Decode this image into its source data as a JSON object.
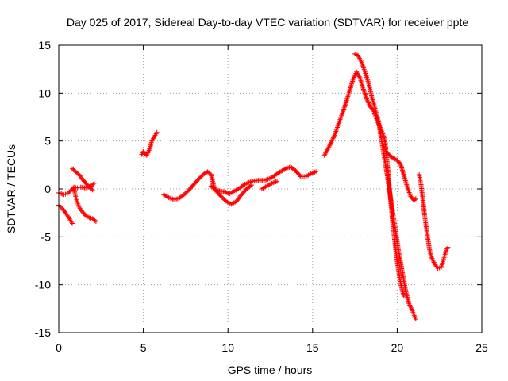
{
  "chart_data": {
    "type": "scatter",
    "title": "Day 025 of 2017, Sidereal Day-to-day VTEC variation (SDTVAR) for receiver ppte",
    "xlabel": "GPS time / hours",
    "ylabel": "SDTVAR / TECUs",
    "xlim": [
      0,
      25
    ],
    "ylim": [
      -15,
      15
    ],
    "xticks": [
      "0",
      "5",
      "10",
      "15",
      "20",
      "25"
    ],
    "yticks": [
      "15",
      "10",
      "5",
      "0",
      "-5",
      "-10",
      "-15"
    ],
    "grid": true,
    "marker": "plus",
    "color": "#ff0000",
    "series": [
      {
        "points": [
          [
            0.0,
            -0.4
          ],
          [
            0.3,
            -0.6
          ],
          [
            0.5,
            -0.5
          ],
          [
            0.7,
            -0.2
          ],
          [
            0.9,
            0.2
          ],
          [
            1.1,
            0.1
          ],
          [
            1.3,
            0.2
          ],
          [
            1.6,
            0.1
          ],
          [
            1.9,
            0.3
          ],
          [
            2.1,
            0.6
          ]
        ]
      },
      {
        "points": [
          [
            0.0,
            -1.7
          ],
          [
            0.2,
            -2.0
          ],
          [
            0.4,
            -2.5
          ],
          [
            0.6,
            -3.0
          ],
          [
            0.8,
            -3.6
          ]
        ]
      },
      {
        "points": [
          [
            0.8,
            2.1
          ],
          [
            1.0,
            1.8
          ],
          [
            1.2,
            1.5
          ],
          [
            1.4,
            1.0
          ],
          [
            1.6,
            0.6
          ],
          [
            1.8,
            0.2
          ],
          [
            2.0,
            -0.1
          ]
        ]
      },
      {
        "points": [
          [
            0.9,
            0.0
          ],
          [
            1.0,
            -0.8
          ],
          [
            1.1,
            -1.4
          ],
          [
            1.2,
            -1.9
          ],
          [
            1.4,
            -2.4
          ],
          [
            1.6,
            -2.8
          ],
          [
            1.8,
            -3.0
          ],
          [
            2.0,
            -3.1
          ],
          [
            2.2,
            -3.4
          ]
        ]
      },
      {
        "points": [
          [
            4.9,
            3.6
          ],
          [
            5.0,
            3.9
          ],
          [
            5.2,
            3.5
          ],
          [
            5.4,
            4.3
          ],
          [
            5.5,
            5.0
          ],
          [
            5.7,
            5.6
          ],
          [
            5.8,
            5.9
          ]
        ]
      },
      {
        "points": [
          [
            6.2,
            -0.6
          ],
          [
            6.5,
            -0.9
          ],
          [
            6.8,
            -1.1
          ],
          [
            7.1,
            -1.0
          ],
          [
            7.4,
            -0.6
          ],
          [
            7.7,
            -0.1
          ],
          [
            8.0,
            0.5
          ],
          [
            8.3,
            1.1
          ],
          [
            8.6,
            1.6
          ],
          [
            8.8,
            1.8
          ],
          [
            9.0,
            1.5
          ],
          [
            9.1,
            0.8
          ],
          [
            9.2,
            0.0
          ],
          [
            9.5,
            -0.2
          ],
          [
            9.8,
            -0.3
          ],
          [
            10.1,
            -0.5
          ],
          [
            10.4,
            -0.2
          ],
          [
            10.7,
            0.1
          ],
          [
            11.0,
            0.5
          ],
          [
            11.4,
            0.8
          ],
          [
            11.8,
            0.9
          ],
          [
            12.2,
            0.9
          ],
          [
            12.6,
            1.2
          ],
          [
            13.0,
            1.7
          ],
          [
            13.4,
            2.1
          ],
          [
            13.7,
            2.3
          ],
          [
            14.0,
            1.9
          ],
          [
            14.3,
            1.3
          ],
          [
            14.6,
            1.3
          ],
          [
            14.9,
            1.6
          ],
          [
            15.2,
            1.8
          ]
        ]
      },
      {
        "points": [
          [
            9.0,
            0.3
          ],
          [
            9.3,
            -0.2
          ],
          [
            9.6,
            -0.8
          ],
          [
            9.9,
            -1.3
          ],
          [
            10.2,
            -1.6
          ],
          [
            10.5,
            -1.3
          ],
          [
            10.8,
            -0.6
          ],
          [
            11.1,
            0.0
          ],
          [
            11.4,
            0.4
          ]
        ]
      },
      {
        "points": [
          [
            12.0,
            0.0
          ],
          [
            12.3,
            0.3
          ],
          [
            12.6,
            0.6
          ],
          [
            12.9,
            0.8
          ]
        ]
      },
      {
        "points": [
          [
            15.7,
            3.5
          ],
          [
            16.0,
            4.5
          ],
          [
            16.3,
            5.6
          ],
          [
            16.6,
            7.1
          ],
          [
            16.9,
            8.6
          ],
          [
            17.2,
            10.3
          ],
          [
            17.4,
            11.5
          ],
          [
            17.6,
            12.2
          ],
          [
            17.8,
            11.6
          ],
          [
            18.0,
            10.4
          ],
          [
            18.2,
            9.4
          ],
          [
            18.4,
            8.6
          ],
          [
            18.6,
            8.2
          ],
          [
            18.8,
            7.2
          ],
          [
            19.0,
            6.4
          ],
          [
            19.2,
            5.5
          ],
          [
            19.3,
            4.8
          ]
        ]
      },
      {
        "points": [
          [
            17.5,
            14.1
          ],
          [
            17.7,
            13.9
          ],
          [
            17.9,
            13.2
          ],
          [
            18.1,
            12.2
          ],
          [
            18.3,
            11.1
          ],
          [
            18.5,
            9.6
          ],
          [
            18.7,
            8.4
          ],
          [
            18.9,
            7.0
          ],
          [
            19.1,
            4.8
          ],
          [
            19.3,
            2.6
          ],
          [
            19.5,
            0.4
          ],
          [
            19.7,
            -2.0
          ],
          [
            19.9,
            -4.3
          ],
          [
            20.1,
            -6.6
          ],
          [
            20.3,
            -8.6
          ],
          [
            20.5,
            -10.6
          ],
          [
            20.7,
            -12.0
          ],
          [
            20.9,
            -12.7
          ],
          [
            21.0,
            -13.2
          ],
          [
            21.1,
            -13.6
          ]
        ]
      },
      {
        "points": [
          [
            19.3,
            4.6
          ],
          [
            19.4,
            3.0
          ],
          [
            19.5,
            1.0
          ],
          [
            19.6,
            -1.0
          ],
          [
            19.7,
            -3.0
          ],
          [
            19.8,
            -4.6
          ],
          [
            19.9,
            -6.2
          ],
          [
            20.0,
            -7.6
          ],
          [
            20.1,
            -8.8
          ],
          [
            20.2,
            -9.8
          ],
          [
            20.3,
            -10.6
          ],
          [
            20.4,
            -11.2
          ]
        ]
      },
      {
        "points": [
          [
            19.4,
            3.8
          ],
          [
            19.6,
            3.4
          ],
          [
            19.8,
            3.2
          ],
          [
            20.0,
            3.0
          ],
          [
            20.2,
            2.6
          ],
          [
            20.4,
            1.4
          ],
          [
            20.6,
            0.2
          ],
          [
            20.8,
            -0.8
          ],
          [
            21.0,
            -1.2
          ],
          [
            21.1,
            -1.0
          ]
        ]
      },
      {
        "points": [
          [
            21.3,
            1.5
          ],
          [
            21.4,
            0.6
          ],
          [
            21.5,
            -0.8
          ],
          [
            21.6,
            -2.4
          ],
          [
            21.7,
            -3.8
          ],
          [
            21.8,
            -5.0
          ],
          [
            21.9,
            -6.2
          ],
          [
            22.0,
            -7.0
          ],
          [
            22.2,
            -7.8
          ],
          [
            22.4,
            -8.3
          ],
          [
            22.6,
            -8.2
          ],
          [
            22.7,
            -7.6
          ],
          [
            22.8,
            -7.0
          ],
          [
            22.9,
            -6.4
          ],
          [
            23.0,
            -6.1
          ]
        ]
      }
    ]
  }
}
